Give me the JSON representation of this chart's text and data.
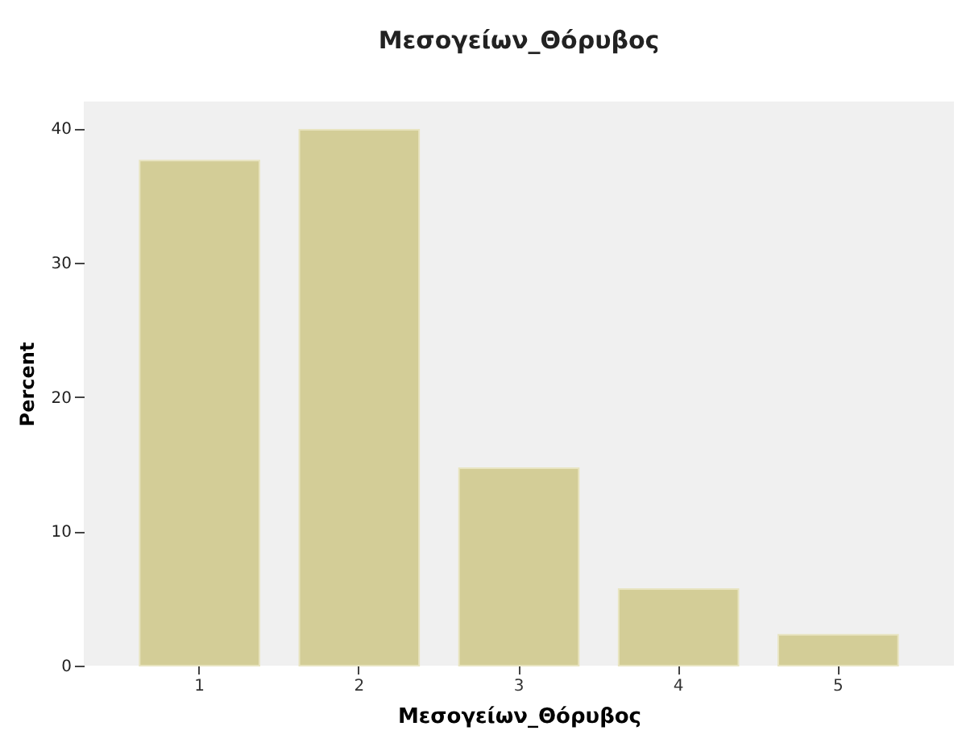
{
  "chart_data": {
    "type": "bar",
    "title": "Μεσογείων_Θόρυβος",
    "xlabel": "Μεσογείων_Θόρυβος",
    "ylabel": "Percent",
    "categories": [
      "1",
      "2",
      "3",
      "4",
      "5"
    ],
    "values": [
      37.6,
      39.9,
      14.7,
      5.7,
      2.3
    ],
    "color": "#d3cd97",
    "ylim": [
      0,
      42
    ],
    "yticks": [
      0,
      10,
      20,
      30,
      40
    ],
    "grid": false
  }
}
